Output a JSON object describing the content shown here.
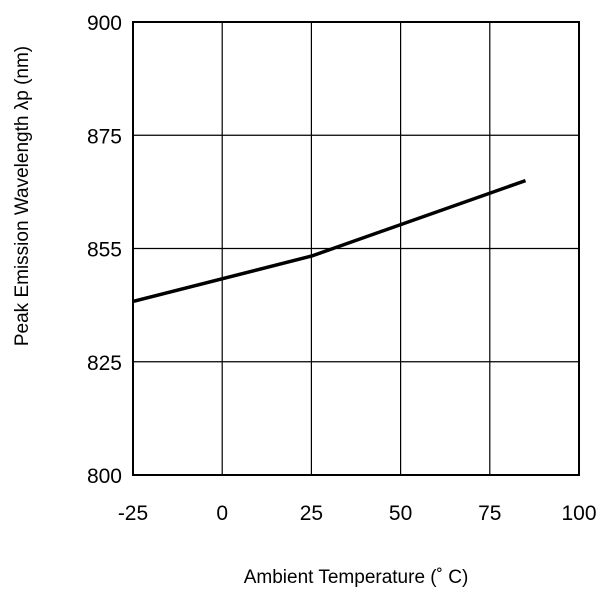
{
  "chart_data": {
    "type": "line",
    "xlabel": "Ambient Temperature (˚ C)",
    "ylabel": "Peak Emission Wavelength λp (nm)",
    "xlim": [
      -25,
      100
    ],
    "ylim": [
      800,
      900
    ],
    "x_ticks": [
      -25,
      0,
      25,
      50,
      75,
      100
    ],
    "y_ticks": [
      800,
      825,
      855,
      875,
      900
    ],
    "grid": true,
    "series": [
      {
        "x": [
          -25,
          25,
          85
        ],
        "y": [
          841,
          853,
          867
        ]
      }
    ]
  }
}
